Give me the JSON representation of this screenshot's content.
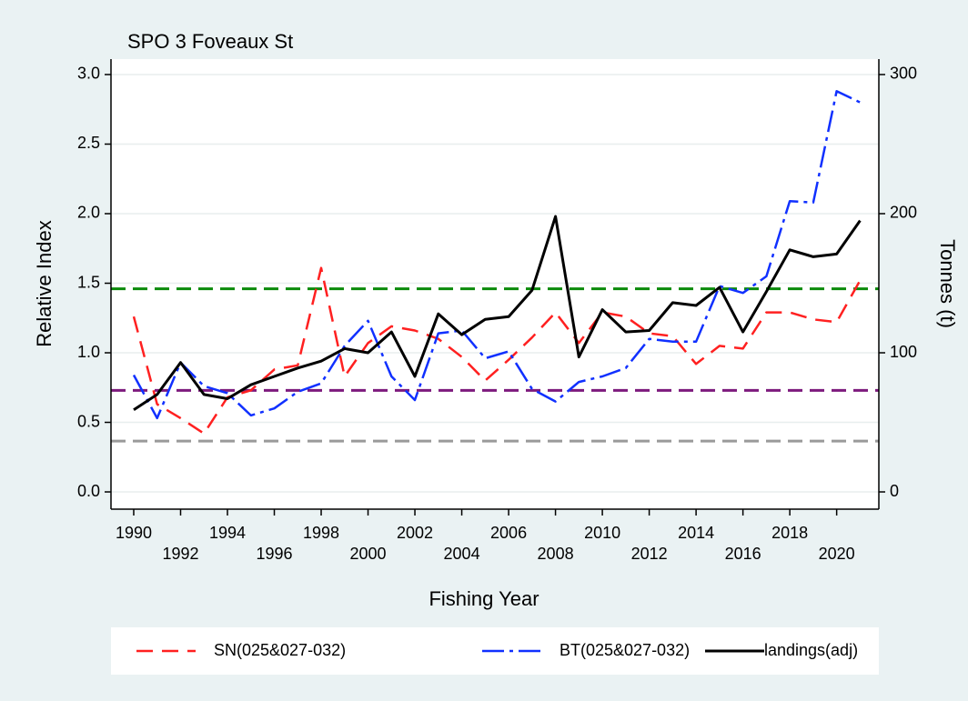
{
  "chart_data": {
    "type": "line",
    "title": "SPO 3 Foveaux St",
    "x_label": "Fishing Year",
    "y_label": "Relative Index",
    "y2_label": "Tonnes (t)",
    "x": [
      1990,
      1991,
      1992,
      1993,
      1994,
      1995,
      1996,
      1997,
      1998,
      1999,
      2000,
      2001,
      2002,
      2003,
      2004,
      2005,
      2006,
      2007,
      2008,
      2009,
      2010,
      2011,
      2012,
      2013,
      2014,
      2015,
      2016,
      2017,
      2018,
      2019,
      2020,
      2021
    ],
    "series": [
      {
        "name": "SN(025&027-032)",
        "color": "#ff2020",
        "dash": "dashed",
        "values": [
          1.26,
          0.63,
          0.53,
          0.42,
          0.68,
          0.73,
          0.88,
          0.91,
          1.61,
          0.83,
          1.07,
          1.19,
          1.16,
          1.1,
          0.97,
          0.8,
          0.95,
          1.11,
          1.29,
          1.07,
          1.29,
          1.26,
          1.14,
          1.12,
          0.92,
          1.05,
          1.03,
          1.29,
          1.29,
          1.24,
          1.22,
          1.52
        ]
      },
      {
        "name": "BT(025&027-032)",
        "color": "#1030ff",
        "dash": "dashdot",
        "values": [
          0.84,
          0.53,
          0.93,
          0.76,
          0.71,
          0.55,
          0.6,
          0.72,
          0.78,
          1.05,
          1.23,
          0.83,
          0.66,
          1.14,
          1.16,
          0.96,
          1.01,
          0.74,
          0.65,
          0.79,
          0.83,
          0.89,
          1.1,
          1.08,
          1.08,
          1.48,
          1.43,
          1.55,
          2.09,
          2.08,
          2.88,
          2.8
        ]
      },
      {
        "name": "landings(adj)",
        "color": "#000000",
        "dash": "solid",
        "axis": "y2",
        "values": [
          59,
          70,
          93,
          70,
          67,
          77,
          83,
          89,
          94,
          103,
          100,
          115,
          83,
          128,
          113,
          124,
          126,
          145,
          198,
          97,
          131,
          115,
          116,
          136,
          134,
          147,
          115,
          144,
          174,
          169,
          171,
          195
        ]
      }
    ],
    "reference_lines": [
      {
        "value": 1.46,
        "color": "#0a8a0a"
      },
      {
        "value": 0.73,
        "color": "#7d1a7d"
      },
      {
        "value": 0.365,
        "color": "#9a9a9a"
      }
    ],
    "xlim": [
      1989.03,
      2021.8
    ],
    "xticks": [
      1990,
      1992,
      1994,
      1996,
      1998,
      2000,
      2002,
      2004,
      2006,
      2008,
      2010,
      2012,
      2014,
      2016,
      2018,
      2020
    ],
    "ylim": [
      -0.124,
      3.111
    ],
    "yticks": [
      {
        "value": 0,
        "label": "0.0"
      },
      0.5,
      {
        "value": 1,
        "label": "1.0"
      },
      1.5,
      {
        "value": 2,
        "label": "2.0"
      },
      2.5,
      {
        "value": 3,
        "label": "3.0"
      }
    ],
    "y2lim": [
      -12.4,
      311.1
    ],
    "y2ticks": [
      0,
      100,
      200,
      300
    ],
    "grid": true
  }
}
